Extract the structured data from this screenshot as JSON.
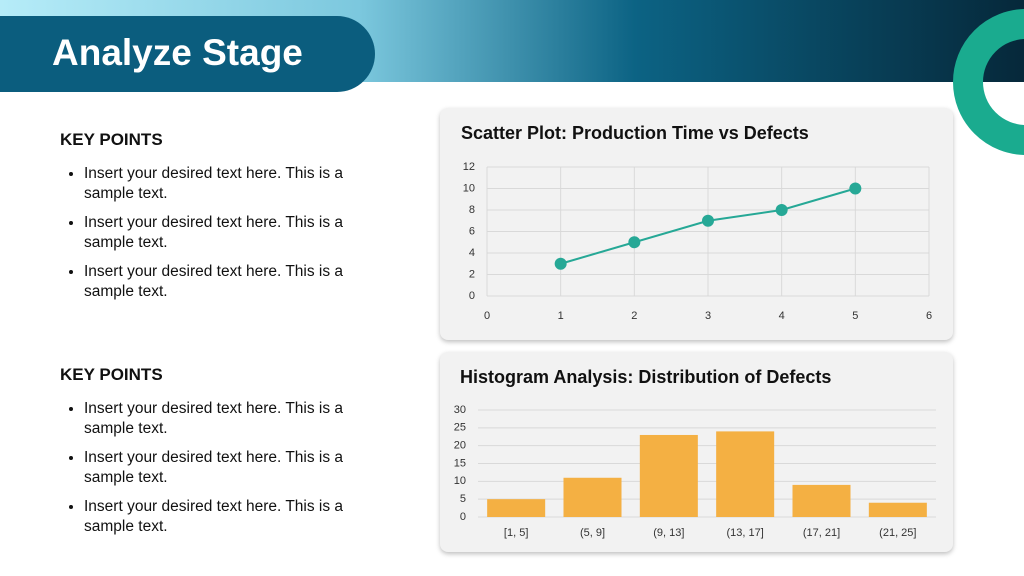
{
  "title": "Analyze Stage",
  "sections": [
    {
      "heading": "KEY POINTS",
      "bullets": [
        "Insert your desired text here. This is a sample text.",
        "Insert your desired text here. This is a sample text.",
        "Insert your desired text here. This is a sample text."
      ]
    },
    {
      "heading": "KEY POINTS",
      "bullets": [
        "Insert your desired text here. This is a sample text.",
        "Insert your desired text here. This is a sample text.",
        "Insert your desired text here. This is a sample text."
      ]
    }
  ],
  "chart_data": [
    {
      "type": "line",
      "title": "Scatter Plot: Production Time vs Defects",
      "x": [
        1,
        2,
        3,
        4,
        5
      ],
      "values": [
        3,
        5,
        7,
        8,
        10
      ],
      "color": "#26a896",
      "xlim": [
        0,
        6
      ],
      "xticks": [
        0,
        1,
        2,
        3,
        4,
        5,
        6
      ],
      "ylim": [
        0,
        12
      ],
      "yticks": [
        0,
        2,
        4,
        6,
        8,
        10,
        12
      ],
      "grid": true
    },
    {
      "type": "bar",
      "title": "Histogram Analysis: Distribution of Defects",
      "categories": [
        "[1, 5]",
        "(5, 9]",
        "(9, 13]",
        "(13, 17]",
        "(17, 21]",
        "(21, 25]"
      ],
      "values": [
        5,
        11,
        23,
        24,
        9,
        4
      ],
      "color": "#f4b043",
      "ylim": [
        0,
        30
      ],
      "yticks": [
        0,
        5,
        10,
        15,
        20,
        25,
        30
      ],
      "grid": true
    }
  ]
}
